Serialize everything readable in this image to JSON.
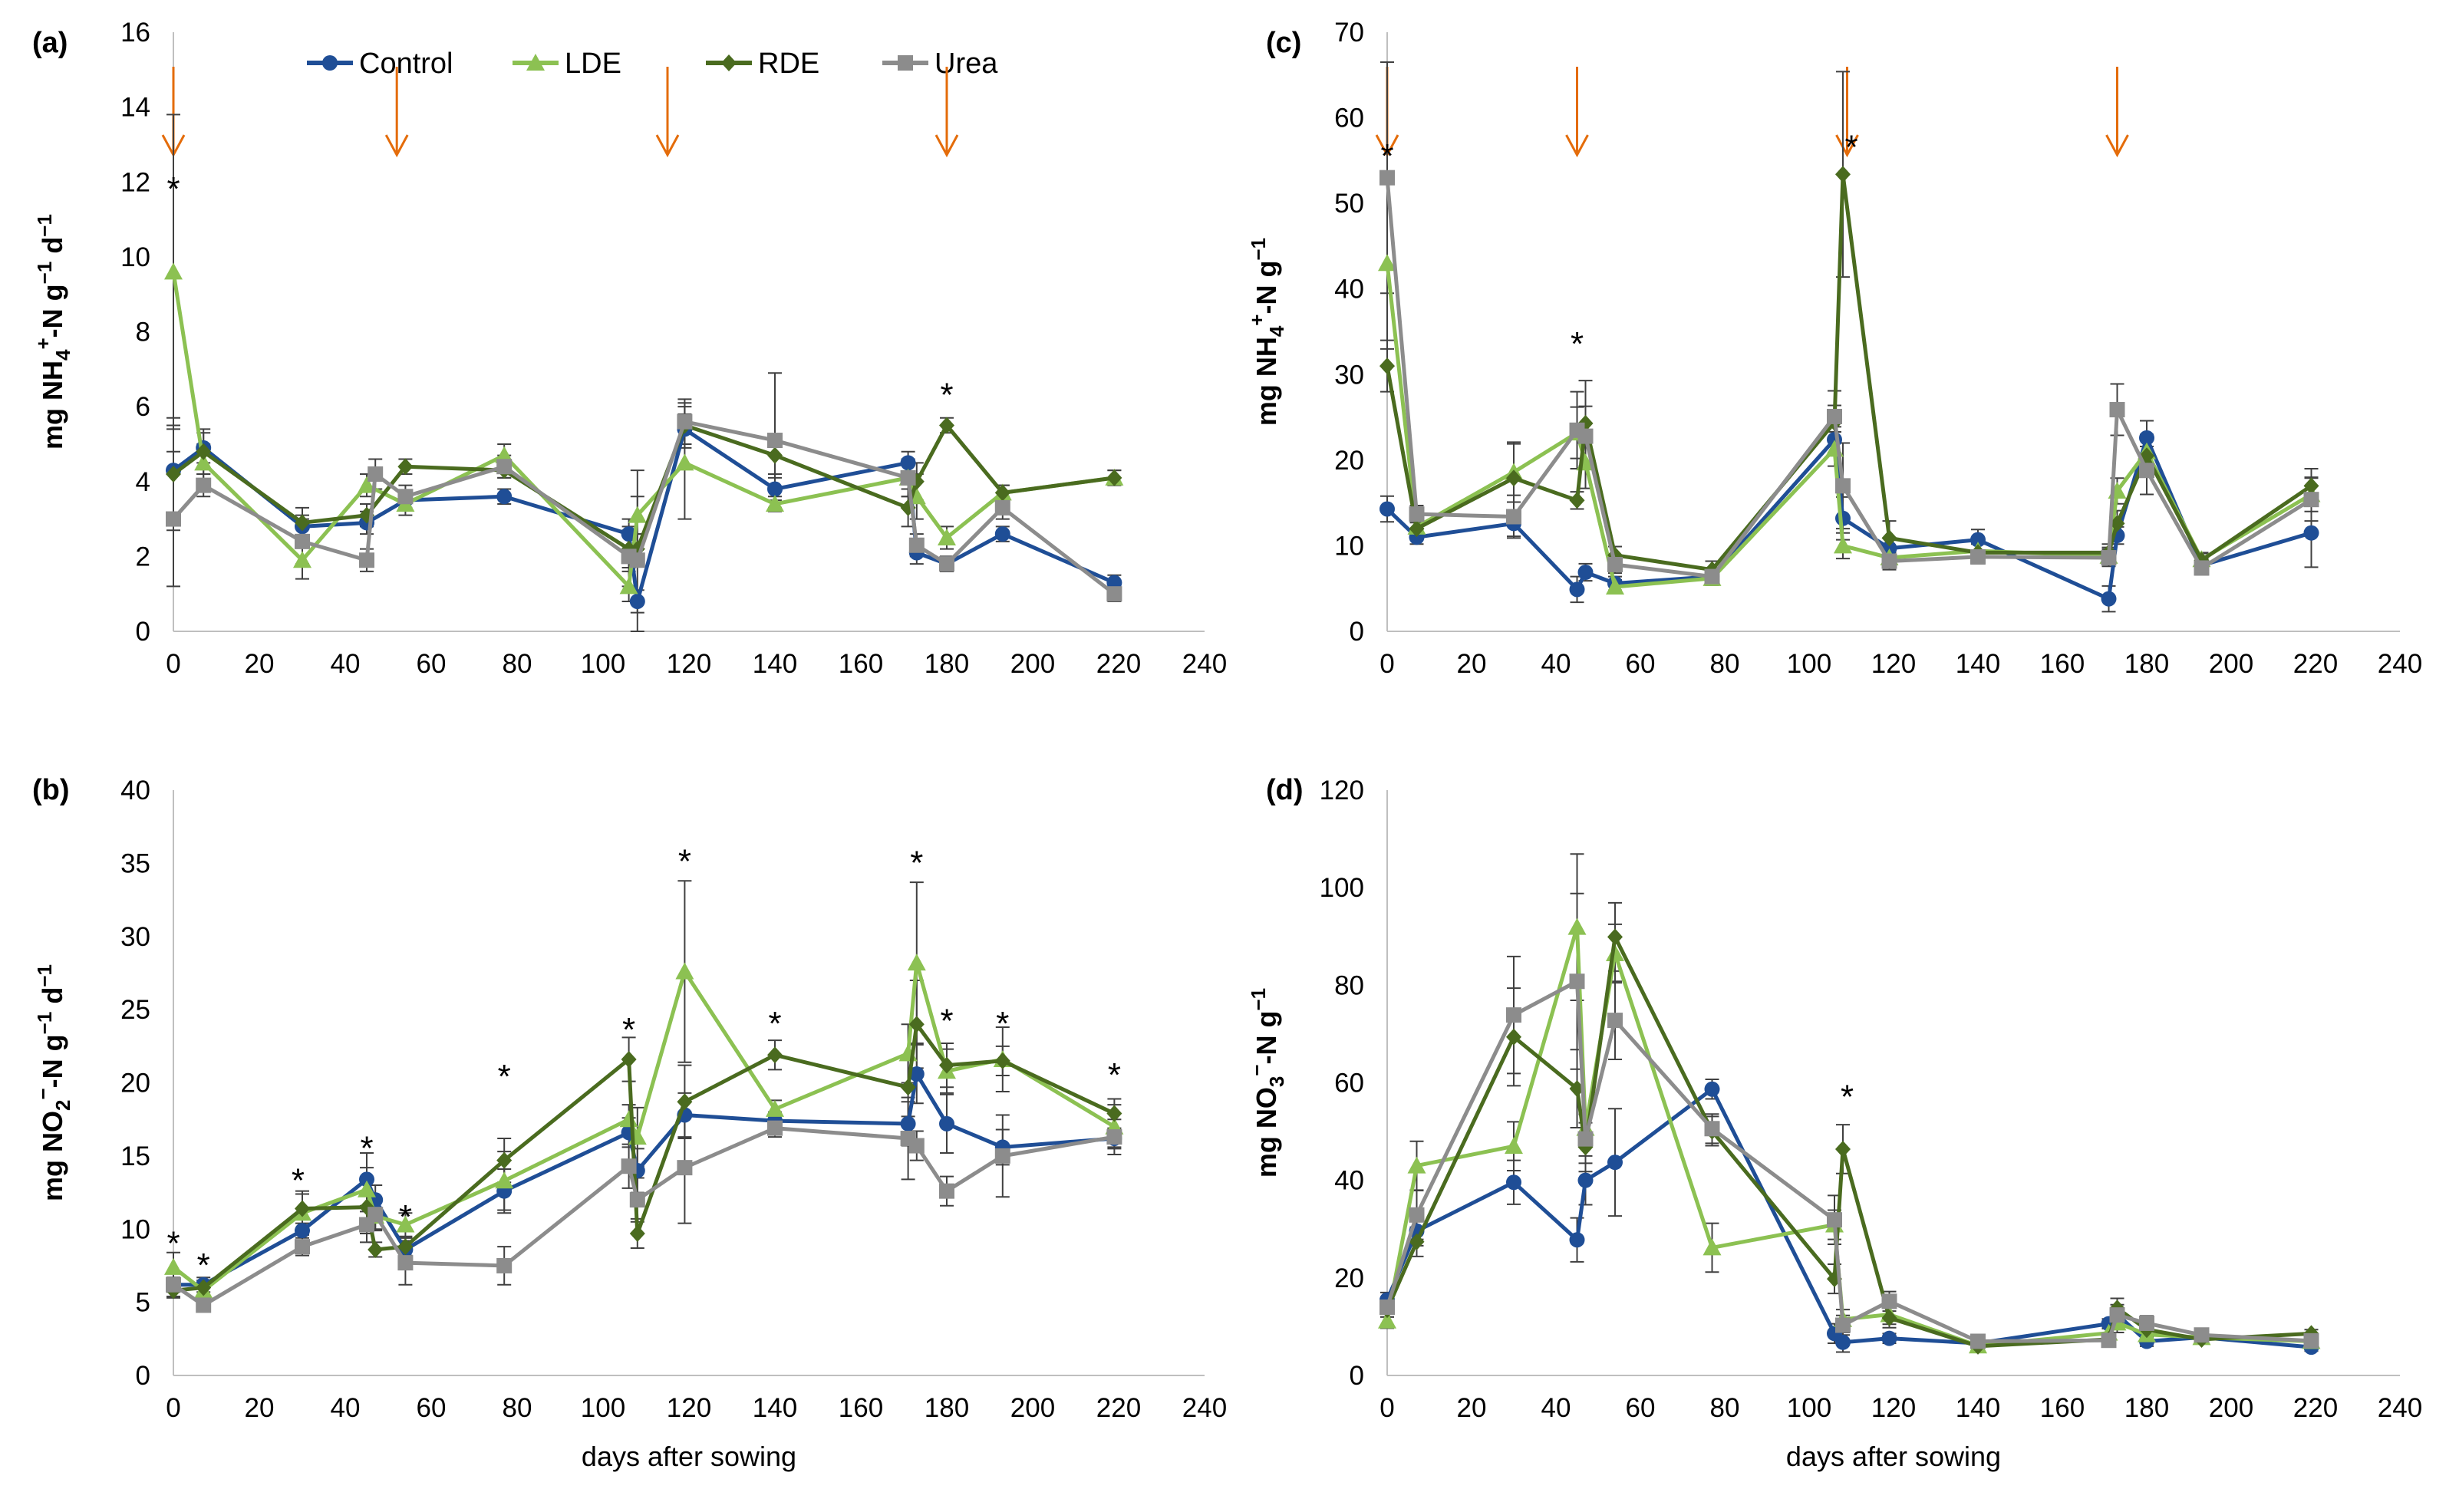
{
  "legend": [
    {
      "name": "Control",
      "color": "#1f4e96",
      "marker": "circle"
    },
    {
      "name": "LDE",
      "color": "#8cc152",
      "marker": "triangle"
    },
    {
      "name": "RDE",
      "color": "#4a6b1f",
      "marker": "diamond"
    },
    {
      "name": "Urea",
      "color": "#8c8c8c",
      "marker": "square"
    }
  ],
  "arrow_color": "#e46c0a",
  "chart_data": [
    {
      "panel": "(a)",
      "type": "line",
      "ylabel_parts": {
        "main": "mg NH",
        "sub": "4",
        "sup": "+",
        "rest": "-N g",
        "sup2": "−1",
        "rest2": " d",
        "sup3": "−1"
      },
      "xlabel": "",
      "xlim": [
        0,
        240
      ],
      "xticks": [
        0,
        20,
        40,
        60,
        80,
        100,
        120,
        140,
        160,
        180,
        200,
        220,
        240
      ],
      "ylim": [
        0,
        16
      ],
      "yticks": [
        0,
        2,
        4,
        6,
        8,
        10,
        12,
        14,
        16
      ],
      "arrows_x": [
        0,
        52,
        115,
        180
      ],
      "stars": [
        {
          "x": 0,
          "y": 11.8
        },
        {
          "x": 180,
          "y": 6.3
        }
      ],
      "series": [
        {
          "name": "Control",
          "x": [
            0,
            7,
            30,
            45,
            54,
            77,
            106,
            108,
            119,
            140,
            171,
            173,
            180,
            193,
            219
          ],
          "y": [
            4.3,
            4.9,
            2.8,
            2.9,
            3.5,
            3.6,
            2.6,
            0.8,
            5.4,
            3.8,
            4.5,
            2.1,
            1.8,
            2.6,
            1.3
          ],
          "err": [
            1.2,
            0.4,
            0.3,
            0.3,
            0.2,
            0.2,
            0.4,
            0.3,
            0.4,
            0.3,
            0.3,
            0.3,
            0.2,
            0.2,
            0.2
          ]
        },
        {
          "name": "LDE",
          "x": [
            0,
            7,
            30,
            45,
            54,
            77,
            106,
            108,
            119,
            140,
            171,
            173,
            180,
            193,
            219
          ],
          "y": [
            9.6,
            4.5,
            1.9,
            3.9,
            3.4,
            4.7,
            1.2,
            3.1,
            4.5,
            3.4,
            4.1,
            3.6,
            2.5,
            3.7,
            4.1
          ],
          "err": [
            4.2,
            0.5,
            0.5,
            0.3,
            0.3,
            0.3,
            0.4,
            0.5,
            1.5,
            0.2,
            0.5,
            0.6,
            0.3,
            0.2,
            0.2
          ]
        },
        {
          "name": "RDE",
          "x": [
            0,
            7,
            30,
            45,
            54,
            77,
            106,
            108,
            119,
            140,
            171,
            173,
            180,
            193,
            219
          ],
          "y": [
            4.2,
            4.8,
            2.9,
            3.1,
            4.4,
            4.3,
            2.2,
            2.2,
            5.5,
            4.7,
            3.3,
            4.0,
            5.5,
            3.7,
            4.1
          ],
          "err": [
            1.5,
            0.6,
            0.4,
            0.3,
            0.2,
            0.2,
            0.5,
            0.4,
            0.6,
            0.5,
            0.5,
            0.5,
            0.2,
            0.2,
            0.2
          ]
        },
        {
          "name": "Urea",
          "x": [
            0,
            7,
            30,
            45,
            47,
            54,
            77,
            106,
            108,
            119,
            140,
            171,
            173,
            180,
            193,
            219
          ],
          "y": [
            3.0,
            3.9,
            2.4,
            1.9,
            4.2,
            3.6,
            4.4,
            2.0,
            1.9,
            5.6,
            5.1,
            4.1,
            2.3,
            1.8,
            3.3,
            1.0
          ],
          "err": [
            1.8,
            0.3,
            0.6,
            0.3,
            0.4,
            0.3,
            0.3,
            0.8,
            2.4,
            0.6,
            1.8,
            0.5,
            0.3,
            0.2,
            0.3,
            0.2
          ]
        }
      ]
    },
    {
      "panel": "(b)",
      "type": "line",
      "ylabel_parts": {
        "main": "mg NO",
        "sub": "2",
        "sup": "−",
        "rest": "-N g",
        "sup2": "−1",
        "rest2": " d",
        "sup3": "−1"
      },
      "xlabel": "days after sowing",
      "xlim": [
        0,
        240
      ],
      "xticks": [
        0,
        20,
        40,
        60,
        80,
        100,
        120,
        140,
        160,
        180,
        200,
        220,
        240
      ],
      "ylim": [
        0,
        40
      ],
      "yticks": [
        0,
        5,
        10,
        15,
        20,
        25,
        30,
        35,
        40
      ],
      "arrows_x": [],
      "stars": [
        {
          "x": 0,
          "y": 9.0
        },
        {
          "x": 7,
          "y": 7.5
        },
        {
          "x": 29,
          "y": 13.3
        },
        {
          "x": 45,
          "y": 15.5
        },
        {
          "x": 54,
          "y": 10.8
        },
        {
          "x": 77,
          "y": 20.4
        },
        {
          "x": 106,
          "y": 23.6
        },
        {
          "x": 119,
          "y": 35.1
        },
        {
          "x": 140,
          "y": 24.0
        },
        {
          "x": 173,
          "y": 35.0
        },
        {
          "x": 180,
          "y": 24.2
        },
        {
          "x": 193,
          "y": 24.0
        },
        {
          "x": 219,
          "y": 20.5
        }
      ],
      "series": [
        {
          "name": "Control",
          "x": [
            0,
            7,
            30,
            45,
            47,
            54,
            77,
            106,
            108,
            119,
            140,
            171,
            173,
            180,
            193,
            219
          ],
          "y": [
            6.2,
            6.2,
            9.9,
            13.4,
            12.0,
            8.6,
            12.6,
            16.6,
            14.0,
            17.8,
            17.4,
            17.2,
            20.6,
            17.2,
            15.6,
            16.2
          ],
          "err": [
            0.5,
            0.5,
            0.8,
            1.8,
            1.0,
            0.8,
            1.5,
            1.0,
            1.5,
            1.5,
            0.6,
            1.5,
            2.0,
            2.0,
            1.2,
            0.6
          ]
        },
        {
          "name": "LDE",
          "x": [
            0,
            7,
            30,
            45,
            47,
            54,
            77,
            106,
            108,
            119,
            140,
            171,
            173,
            180,
            193,
            219
          ],
          "y": [
            7.4,
            5.8,
            11.1,
            12.7,
            10.9,
            10.3,
            13.3,
            17.5,
            16.3,
            27.6,
            18.2,
            22.0,
            28.2,
            20.8,
            21.6,
            17.0
          ],
          "err": [
            1.0,
            0.5,
            1.5,
            1.5,
            1.0,
            0.8,
            2.0,
            1.0,
            2.0,
            6.2,
            0.6,
            2.0,
            5.5,
            1.5,
            2.2,
            1.5
          ]
        },
        {
          "name": "RDE",
          "x": [
            0,
            7,
            30,
            45,
            47,
            54,
            77,
            106,
            108,
            119,
            140,
            171,
            173,
            180,
            193,
            219
          ],
          "y": [
            5.8,
            6.0,
            11.4,
            11.5,
            8.6,
            8.8,
            14.7,
            21.6,
            9.7,
            18.7,
            21.9,
            19.7,
            24.0,
            21.2,
            21.5,
            17.9
          ],
          "err": [
            0.5,
            0.5,
            1.0,
            1.8,
            0.5,
            0.6,
            1.5,
            1.5,
            1.0,
            2.5,
            1.0,
            2.0,
            3.0,
            1.5,
            1.0,
            1.0
          ]
        },
        {
          "name": "Urea",
          "x": [
            0,
            7,
            30,
            45,
            47,
            54,
            77,
            106,
            108,
            119,
            140,
            171,
            173,
            180,
            193,
            219
          ],
          "y": [
            6.2,
            4.8,
            8.8,
            10.3,
            11.0,
            7.7,
            7.5,
            14.3,
            12.0,
            14.2,
            16.9,
            16.2,
            15.7,
            12.6,
            15.0,
            16.3
          ],
          "err": [
            0.8,
            0.4,
            0.6,
            1.2,
            1.0,
            1.5,
            1.3,
            1.5,
            1.5,
            3.8,
            0.6,
            2.8,
            1.0,
            1.0,
            2.8,
            1.2
          ]
        }
      ]
    },
    {
      "panel": "(c)",
      "type": "line",
      "ylabel_parts": {
        "main": "mg NH",
        "sub": "4",
        "sup": "+",
        "rest": "-N g",
        "sup2": "−1",
        "rest2": "",
        "sup3": ""
      },
      "xlabel": "",
      "xlim": [
        0,
        240
      ],
      "xticks": [
        0,
        20,
        40,
        60,
        80,
        100,
        120,
        140,
        160,
        180,
        200,
        220,
        240
      ],
      "ylim": [
        0,
        70
      ],
      "yticks": [
        0,
        10,
        20,
        30,
        40,
        50,
        60,
        70
      ],
      "arrows_x": [
        0,
        45,
        109,
        173
      ],
      "stars": [
        {
          "x": 0,
          "y": 55.5
        },
        {
          "x": 45,
          "y": 33.5
        },
        {
          "x": 110,
          "y": 56.5
        }
      ],
      "series": [
        {
          "name": "Control",
          "x": [
            0,
            7,
            30,
            45,
            47,
            54,
            77,
            106,
            108,
            119,
            140,
            171,
            173,
            180,
            193,
            219
          ],
          "y": [
            14.3,
            11.0,
            12.6,
            4.9,
            6.9,
            5.6,
            6.4,
            22.4,
            13.2,
            9.7,
            10.7,
            3.8,
            11.2,
            22.6,
            7.7,
            11.5
          ],
          "err": [
            1.5,
            0.8,
            1.5,
            1.5,
            1.0,
            0.8,
            0.8,
            1.5,
            2.5,
            1.2,
            1.2,
            1.5,
            1.0,
            2.0,
            0.8,
            4.0
          ]
        },
        {
          "name": "LDE",
          "x": [
            0,
            7,
            30,
            45,
            47,
            54,
            77,
            106,
            108,
            119,
            140,
            171,
            173,
            180,
            193,
            219
          ],
          "y": [
            43.0,
            12.2,
            18.6,
            23.2,
            19.7,
            5.2,
            6.2,
            21.3,
            10.0,
            8.6,
            9.4,
            8.8,
            16.4,
            21.0,
            8.4,
            16.0
          ],
          "err": [
            10.0,
            1.0,
            3.5,
            3.0,
            3.0,
            0.8,
            0.8,
            2.0,
            1.5,
            1.0,
            1.0,
            1.0,
            1.5,
            2.0,
            0.8,
            2.0
          ]
        },
        {
          "name": "RDE",
          "x": [
            0,
            7,
            30,
            45,
            47,
            54,
            77,
            106,
            108,
            119,
            140,
            171,
            173,
            180,
            193,
            219
          ],
          "y": [
            31.0,
            12.0,
            17.9,
            15.3,
            24.3,
            8.9,
            7.2,
            24.4,
            53.4,
            10.9,
            9.2,
            9.2,
            12.6,
            20.5,
            8.3,
            17.0
          ],
          "err": [
            3.0,
            1.0,
            4.0,
            1.0,
            5.0,
            1.0,
            1.0,
            2.0,
            12.0,
            2.0,
            1.0,
            1.0,
            1.5,
            2.0,
            0.8,
            2.0
          ]
        },
        {
          "name": "Urea",
          "x": [
            0,
            7,
            30,
            45,
            47,
            54,
            77,
            106,
            108,
            119,
            140,
            171,
            173,
            180,
            193,
            219
          ],
          "y": [
            53.0,
            13.7,
            13.4,
            23.5,
            22.8,
            7.8,
            6.4,
            25.1,
            17.0,
            8.2,
            8.7,
            8.6,
            25.9,
            18.8,
            7.4,
            15.4
          ],
          "err": [
            13.5,
            1.0,
            2.5,
            4.5,
            3.5,
            1.0,
            1.0,
            3.0,
            5.0,
            1.0,
            0.8,
            1.0,
            3.0,
            2.8,
            0.8,
            2.5
          ]
        }
      ]
    },
    {
      "panel": "(d)",
      "type": "line",
      "ylabel_parts": {
        "main": "mg NO",
        "sub": "3",
        "sup": "−",
        "rest": "-N g",
        "sup2": "−1",
        "rest2": "",
        "sup3": ""
      },
      "xlabel": "days after sowing",
      "xlim": [
        0,
        240
      ],
      "xticks": [
        0,
        20,
        40,
        60,
        80,
        100,
        120,
        140,
        160,
        180,
        200,
        220,
        240
      ],
      "ylim": [
        0,
        120
      ],
      "yticks": [
        0,
        20,
        40,
        60,
        80,
        100,
        120
      ],
      "arrows_x": [],
      "stars": [
        {
          "x": 109,
          "y": 57.0
        }
      ],
      "series": [
        {
          "name": "Control",
          "x": [
            0,
            7,
            30,
            45,
            47,
            54,
            77,
            106,
            108,
            119,
            140,
            171,
            173,
            180,
            193,
            219
          ],
          "y": [
            15.5,
            29.6,
            39.6,
            27.8,
            40.0,
            43.7,
            58.7,
            8.6,
            6.8,
            7.6,
            6.6,
            10.6,
            12.5,
            7.0,
            7.8,
            5.8
          ],
          "err": [
            1.5,
            3.0,
            4.5,
            4.5,
            5.0,
            11.0,
            2.0,
            2.0,
            2.0,
            1.0,
            0.8,
            1.0,
            2.0,
            1.0,
            0.8,
            0.8
          ]
        },
        {
          "name": "LDE",
          "x": [
            0,
            7,
            30,
            45,
            47,
            54,
            77,
            106,
            108,
            119,
            140,
            171,
            173,
            180,
            193,
            219
          ],
          "y": [
            11.2,
            43.0,
            47.0,
            91.9,
            50.7,
            86.5,
            26.2,
            30.9,
            11.5,
            12.5,
            6.1,
            8.7,
            10.8,
            8.4,
            7.8,
            7.0
          ],
          "err": [
            1.5,
            5.0,
            5.0,
            15.0,
            3.0,
            6.0,
            5.0,
            3.0,
            2.0,
            2.0,
            0.8,
            1.0,
            2.0,
            1.5,
            0.8,
            0.8
          ]
        },
        {
          "name": "RDE",
          "x": [
            0,
            7,
            30,
            45,
            47,
            54,
            77,
            106,
            108,
            119,
            140,
            171,
            173,
            180,
            193,
            219
          ],
          "y": [
            13.5,
            27.4,
            69.4,
            58.8,
            46.8,
            89.9,
            50.1,
            19.8,
            46.4,
            11.8,
            6.0,
            7.4,
            13.8,
            9.4,
            7.4,
            8.6
          ],
          "err": [
            1.5,
            3.0,
            10.0,
            8.0,
            5.0,
            7.0,
            3.0,
            3.0,
            5.0,
            2.0,
            0.8,
            1.0,
            2.0,
            1.5,
            0.8,
            0.8
          ]
        },
        {
          "name": "Urea",
          "x": [
            0,
            7,
            30,
            45,
            47,
            54,
            77,
            106,
            108,
            119,
            140,
            171,
            173,
            180,
            193,
            219
          ],
          "y": [
            14.0,
            32.9,
            73.9,
            80.8,
            48.5,
            72.8,
            50.6,
            31.9,
            10.3,
            15.2,
            7.0,
            7.2,
            12.4,
            10.7,
            8.3,
            7.1
          ],
          "err": [
            2.0,
            5.0,
            12.0,
            18.0,
            5.0,
            8.0,
            3.0,
            5.0,
            2.0,
            2.0,
            0.8,
            1.0,
            1.5,
            1.5,
            0.8,
            0.8
          ]
        }
      ]
    }
  ]
}
